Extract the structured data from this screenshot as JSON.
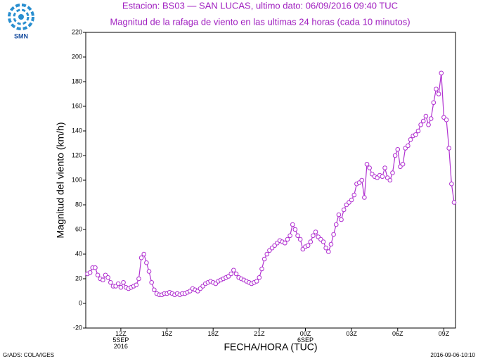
{
  "logo_text": "SMN",
  "footer_left": "GrADS: COLA/IGES",
  "footer_right": "2016-09-06-10:10",
  "chart_data": {
    "type": "line",
    "title": "Estacion: BS03 — SAN LUCAS, ultimo dato: 06/09/2016 09:40 TUC",
    "subtitle": "Magnitud de la rafaga de viento en las ultimas 24 horas (cada 10 minutos)",
    "y_label": "Magnitud del viento (km/h)",
    "x_label": "FECHA/HORA (TUC)",
    "ylim": [
      -20,
      220
    ],
    "yticks": [
      -20,
      0,
      20,
      40,
      60,
      80,
      100,
      120,
      140,
      160,
      180,
      200,
      220
    ],
    "categories": [
      null,
      null,
      null,
      null,
      null,
      null,
      null,
      null,
      null,
      null,
      null,
      null,
      null,
      "12Z\n5SEP\n2016",
      null,
      null,
      null,
      null,
      null,
      null,
      null,
      null,
      null,
      null,
      null,
      null,
      null,
      null,
      null,
      null,
      null,
      "15Z",
      null,
      null,
      null,
      null,
      null,
      null,
      null,
      null,
      null,
      null,
      null,
      null,
      null,
      null,
      null,
      null,
      null,
      "18Z",
      null,
      null,
      null,
      null,
      null,
      null,
      null,
      null,
      null,
      null,
      null,
      null,
      null,
      null,
      null,
      null,
      null,
      "21Z",
      null,
      null,
      null,
      null,
      null,
      null,
      null,
      null,
      null,
      null,
      null,
      null,
      null,
      null,
      null,
      null,
      null,
      "00Z\n6SEP",
      null,
      null,
      null,
      null,
      null,
      null,
      null,
      null,
      null,
      null,
      null,
      null,
      null,
      null,
      null,
      null,
      null,
      "03Z",
      null,
      null,
      null,
      null,
      null,
      null,
      null,
      null,
      null,
      null,
      null,
      null,
      null,
      null,
      null,
      null,
      null,
      "06Z",
      null,
      null,
      null,
      null,
      null,
      null,
      null,
      null,
      null,
      null,
      null,
      null,
      null,
      null,
      null,
      null,
      null,
      "09Z",
      null,
      null,
      null,
      null
    ],
    "series": [
      {
        "name": "Rafaga",
        "color": "#b030d0",
        "values": [
          24,
          25,
          29,
          29,
          23,
          20,
          19,
          23,
          21,
          17,
          14,
          14,
          16,
          13,
          17,
          13,
          12,
          13,
          14,
          15,
          20,
          37,
          40,
          33,
          26,
          17,
          11,
          8,
          7,
          7,
          8,
          8,
          9,
          8,
          7,
          8,
          7,
          8,
          8,
          9,
          10,
          12,
          11,
          10,
          12,
          14,
          16,
          17,
          18,
          17,
          16,
          18,
          19,
          20,
          21,
          22,
          24,
          27,
          24,
          21,
          20,
          19,
          18,
          17,
          16,
          17,
          18,
          21,
          28,
          36,
          40,
          43,
          45,
          47,
          49,
          51,
          50,
          49,
          52,
          55,
          64,
          60,
          55,
          52,
          44,
          46,
          47,
          50,
          55,
          58,
          54,
          52,
          50,
          45,
          42,
          48,
          56,
          64,
          72,
          68,
          76,
          80,
          82,
          84,
          88,
          97,
          98,
          100,
          86,
          113,
          110,
          105,
          103,
          102,
          104,
          103,
          110,
          102,
          100,
          106,
          120,
          125,
          111,
          113,
          126,
          128,
          133,
          136,
          137,
          140,
          145,
          148,
          152,
          145,
          150,
          163,
          174,
          170,
          187,
          151,
          149,
          126,
          97,
          82
        ]
      }
    ]
  }
}
